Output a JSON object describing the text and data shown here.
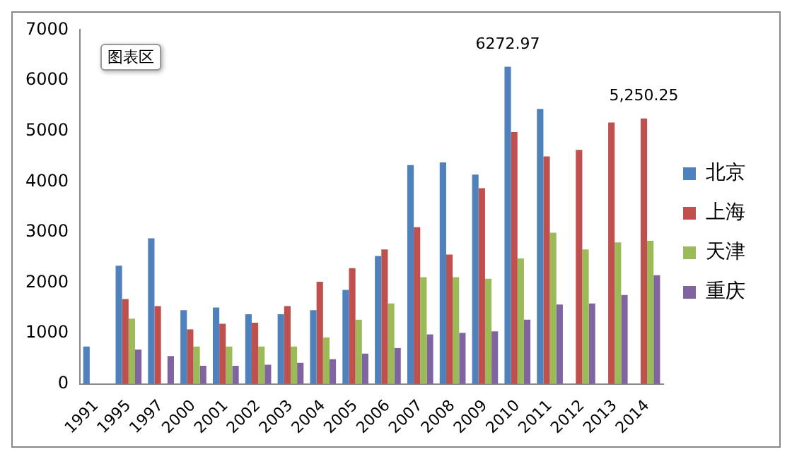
{
  "chart_data": {
    "type": "bar",
    "categories": [
      "1991",
      "1995",
      "1997",
      "2000",
      "2001",
      "2002",
      "2003",
      "2004",
      "2005",
      "2006",
      "2007",
      "2008",
      "2009",
      "2010",
      "2011",
      "2012",
      "2013",
      "2014"
    ],
    "series": [
      {
        "name": "北京",
        "color": "#4f81bd",
        "values": [
          740,
          2340,
          2880,
          1460,
          1510,
          1380,
          1380,
          1460,
          1860,
          2530,
          4330,
          4380,
          4140,
          6272.97,
          5440,
          null,
          null,
          null
        ],
        "value_labels": [
          null,
          null,
          null,
          null,
          null,
          null,
          null,
          null,
          null,
          null,
          null,
          null,
          null,
          "6272.97",
          null,
          null,
          null,
          null
        ]
      },
      {
        "name": "上海",
        "color": "#c0504d",
        "values": [
          null,
          1680,
          1540,
          1080,
          1190,
          1210,
          1540,
          2020,
          2290,
          2660,
          3100,
          2560,
          3870,
          4980,
          4500,
          4630,
          5170,
          5250.25
        ],
        "value_labels": [
          null,
          null,
          null,
          null,
          null,
          null,
          null,
          null,
          null,
          null,
          null,
          null,
          null,
          null,
          null,
          null,
          null,
          "5,250.25"
        ]
      },
      {
        "name": "天津",
        "color": "#9bbb59",
        "values": [
          null,
          1290,
          null,
          740,
          740,
          740,
          740,
          920,
          1270,
          1590,
          2110,
          2110,
          2080,
          2480,
          2990,
          2660,
          2800,
          2830
        ]
      },
      {
        "name": "重庆",
        "color": "#8064a2",
        "values": [
          null,
          680,
          550,
          360,
          360,
          380,
          420,
          490,
          600,
          710,
          980,
          1010,
          1040,
          1270,
          1570,
          1590,
          1760,
          2150
        ]
      }
    ],
    "ylim": [
      0,
      7000
    ],
    "yticks": [
      0,
      1000,
      2000,
      3000,
      4000,
      5000,
      6000,
      7000
    ],
    "grid": false,
    "legend": "right",
    "annotations": [
      "图表区"
    ]
  }
}
